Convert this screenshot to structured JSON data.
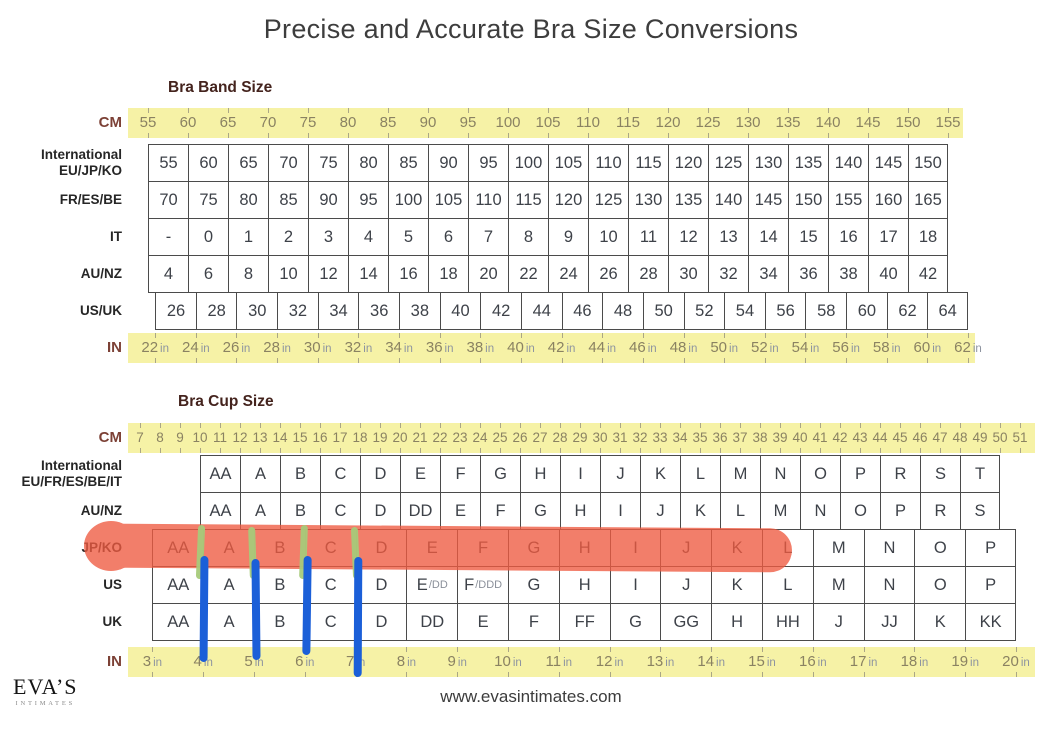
{
  "page": {
    "title": "Precise and Accurate Bra Size Conversions",
    "footer_url": "www.evasintimates.com",
    "logo": {
      "name": "EVA’S",
      "subtitle": "INTIMATES"
    }
  },
  "annotations": {
    "marker_color": "#ef5b41",
    "tick_color": "#a6ca7a",
    "line_color": "#1b5fd8"
  },
  "band_table": {
    "heading": "Bra Band Size",
    "cm_ruler": {
      "label": "CM",
      "values": [
        55,
        60,
        65,
        70,
        75,
        80,
        85,
        90,
        95,
        100,
        105,
        110,
        115,
        120,
        125,
        130,
        135,
        140,
        145,
        150,
        155
      ]
    },
    "in_ruler": {
      "label": "IN",
      "unit": "in",
      "values": [
        22,
        24,
        26,
        28,
        30,
        32,
        34,
        36,
        38,
        40,
        42,
        44,
        46,
        48,
        50,
        52,
        54,
        56,
        58,
        60,
        62
      ]
    },
    "rows": [
      {
        "label": "International",
        "label2": "EU/JP/KO",
        "scale": "cm",
        "values": [
          55,
          60,
          65,
          70,
          75,
          80,
          85,
          90,
          95,
          100,
          105,
          110,
          115,
          120,
          125,
          130,
          135,
          140,
          145,
          150
        ]
      },
      {
        "label": "FR/ES/BE",
        "scale": "cm",
        "values": [
          70,
          75,
          80,
          85,
          90,
          95,
          100,
          105,
          110,
          115,
          120,
          125,
          130,
          135,
          140,
          145,
          150,
          155,
          160,
          165
        ]
      },
      {
        "label": "IT",
        "scale": "cm",
        "values": [
          "-",
          0,
          1,
          2,
          3,
          4,
          5,
          6,
          7,
          8,
          9,
          10,
          11,
          12,
          13,
          14,
          15,
          16,
          17,
          18
        ]
      },
      {
        "label": "AU/NZ",
        "scale": "cm",
        "values": [
          4,
          6,
          8,
          10,
          12,
          14,
          16,
          18,
          20,
          22,
          24,
          26,
          28,
          30,
          32,
          34,
          36,
          38,
          40,
          42
        ]
      },
      {
        "label": "US/UK",
        "scale": "inch",
        "values": [
          26,
          28,
          30,
          32,
          34,
          36,
          38,
          40,
          42,
          44,
          46,
          48,
          50,
          52,
          54,
          56,
          58,
          60,
          62,
          64
        ]
      }
    ]
  },
  "cup_table": {
    "heading": "Bra Cup Size",
    "cm_ruler": {
      "label": "CM",
      "values": [
        7,
        8,
        9,
        10,
        11,
        12,
        13,
        14,
        15,
        16,
        17,
        18,
        19,
        20,
        21,
        22,
        23,
        24,
        25,
        26,
        27,
        28,
        29,
        30,
        31,
        32,
        33,
        34,
        35,
        36,
        37,
        38,
        39,
        40,
        41,
        42,
        43,
        44,
        45,
        46,
        47,
        48,
        49,
        50,
        51
      ]
    },
    "in_ruler": {
      "label": "IN",
      "unit": "in",
      "values": [
        3,
        4,
        5,
        6,
        7,
        8,
        9,
        10,
        11,
        12,
        13,
        14,
        15,
        16,
        17,
        18,
        19,
        20
      ]
    },
    "rows": [
      {
        "label": "International",
        "label2": "EU/FR/ES/BE/IT",
        "scale": "cm",
        "values": [
          "AA",
          "A",
          "B",
          "C",
          "D",
          "E",
          "F",
          "G",
          "H",
          "I",
          "J",
          "K",
          "L",
          "M",
          "N",
          "O",
          "P",
          "R",
          "S",
          "T"
        ]
      },
      {
        "label": "AU/NZ",
        "scale": "cm",
        "values": [
          "AA",
          "A",
          "B",
          "C",
          "D",
          "DD",
          "E",
          "F",
          "G",
          "H",
          "I",
          "J",
          "K",
          "L",
          "M",
          "N",
          "O",
          "P",
          "R",
          "S"
        ]
      },
      {
        "label": "JP/KO",
        "scale": "inch",
        "values": [
          "AA",
          "A",
          "B",
          "C",
          "D",
          "E",
          "F",
          "G",
          "H",
          "I",
          "J",
          "K",
          "L",
          "M",
          "N",
          "O",
          "P"
        ]
      },
      {
        "label": "US",
        "scale": "inch",
        "values": [
          "AA",
          "A",
          "B",
          "C",
          "D",
          "E/DD",
          "F/DDD",
          "G",
          "H",
          "I",
          "J",
          "K",
          "L",
          "M",
          "N",
          "O",
          "P"
        ]
      },
      {
        "label": "UK",
        "scale": "inch",
        "values": [
          "AA",
          "A",
          "B",
          "C",
          "D",
          "DD",
          "E",
          "F",
          "FF",
          "G",
          "GG",
          "H",
          "HH",
          "J",
          "JJ",
          "K",
          "KK"
        ]
      }
    ]
  }
}
